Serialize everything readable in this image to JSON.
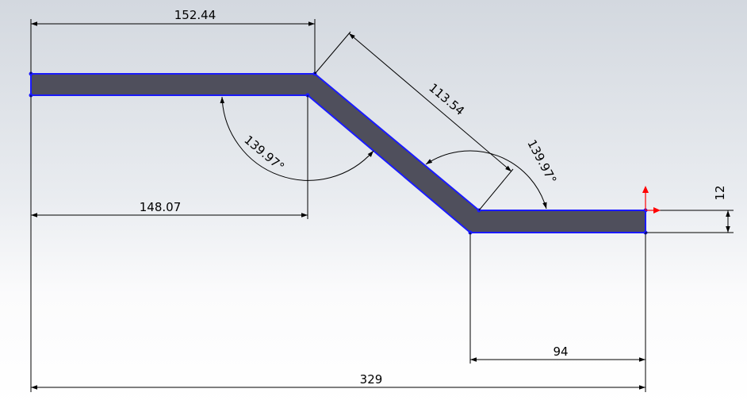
{
  "drawing": {
    "dimensions": {
      "top_length": "152.44",
      "bottom_length": "148.07",
      "slant_length": "113.54",
      "angle_left": "139.97°",
      "angle_right": "139.97°",
      "thickness": "12",
      "end_length": "94",
      "overall_length": "329"
    }
  },
  "colors": {
    "part_fill": "#4f4f5c",
    "edge": "#1a1aff",
    "dimension": "#000000",
    "origin_x_axis": "#ff0000",
    "origin_y_axis": "#ff0000"
  }
}
